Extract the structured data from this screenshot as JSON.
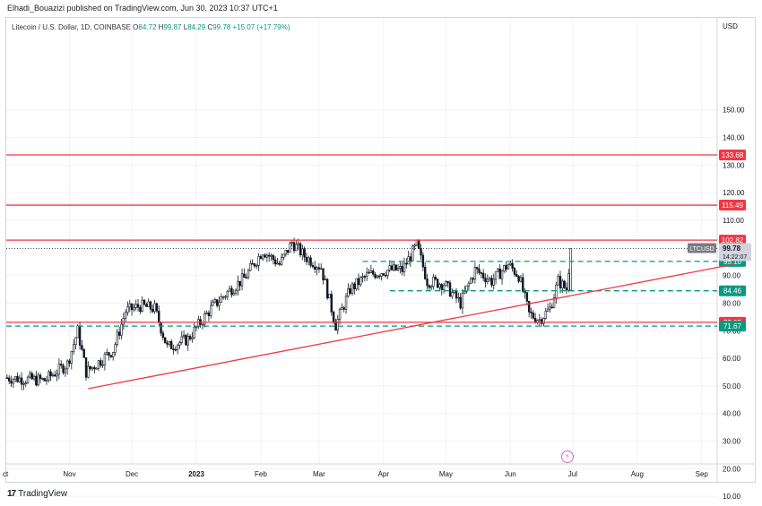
{
  "header": {
    "published_by": "Elhadi_Bouazizi published on TradingView.com, Jun 30, 2023 10:37 UTC+1"
  },
  "legend": {
    "symbol_text": "Litecoin / U.S. Dollar, 1D, COINBASE",
    "o_label": "O",
    "o_value": "84.72",
    "h_label": "H",
    "h_value": "99.87",
    "l_label": "L",
    "l_value": "84.29",
    "c_label": "C",
    "c_value": "99.78",
    "change": "+15.07 (+17.79%)"
  },
  "footer": {
    "logo_text": "TradingView"
  },
  "icons": {
    "logo": "tradingview-logo-icon",
    "replay": "lightning-clock-icon"
  },
  "colors": {
    "up": "#089981",
    "down": "#f23645",
    "candle": "#131722",
    "resistance": "#f23645",
    "dashed": "#089981",
    "trendline": "#f23645",
    "price_label_bg": "#131722"
  },
  "chart_data": {
    "type": "candlestick",
    "symbol": "Litecoin / U.S. Dollar, 1D, COINBASE",
    "axis_unit": "USD",
    "x_ticks": [
      "Nov",
      "Dec",
      "2023",
      "Feb",
      "Mar",
      "Apr",
      "May",
      "Jun",
      "Jul",
      "Aug",
      "Sep"
    ],
    "x_first_partial_label": "ct",
    "y_ticks": [
      10,
      20,
      30,
      40,
      50,
      60,
      70,
      80,
      90,
      100,
      110,
      120,
      130,
      140,
      150
    ],
    "ylim": [
      0,
      160
    ],
    "horizontal_levels": [
      {
        "value": 133.68,
        "label": "133.68",
        "style": "solid",
        "color": "#f23645"
      },
      {
        "value": 115.49,
        "label": "115.49",
        "style": "solid",
        "color": "#f23645"
      },
      {
        "value": 102.82,
        "label": "102.82",
        "style": "solid",
        "color": "#f23645"
      },
      {
        "value": 95.1,
        "label": "95.10",
        "style": "dashed",
        "color": "#089981"
      },
      {
        "value": 84.46,
        "label": "84.46",
        "style": "dashed",
        "color": "#089981"
      },
      {
        "value": 73.05,
        "label": "73.05",
        "style": "solid",
        "color": "#f23645"
      },
      {
        "value": 71.67,
        "label": "71.67",
        "style": "dashed",
        "color": "#089981"
      }
    ],
    "trendline": {
      "start": {
        "date": "2022-11-10",
        "value": 49
      },
      "end": {
        "date": "2023-09-16",
        "value": 94
      }
    },
    "last_price": {
      "symbol": "LTCUSD",
      "value": "99.78",
      "countdown": "14:22:07"
    },
    "approx_closes": [
      {
        "date": "2022-10-01",
        "value": 53
      },
      {
        "date": "2022-10-20",
        "value": 52
      },
      {
        "date": "2022-10-31",
        "value": 58
      },
      {
        "date": "2022-11-05",
        "value": 70
      },
      {
        "date": "2022-11-09",
        "value": 55
      },
      {
        "date": "2022-11-14",
        "value": 58
      },
      {
        "date": "2022-11-22",
        "value": 63
      },
      {
        "date": "2022-11-28",
        "value": 77
      },
      {
        "date": "2022-12-05",
        "value": 79
      },
      {
        "date": "2022-12-12",
        "value": 78
      },
      {
        "date": "2022-12-18",
        "value": 64
      },
      {
        "date": "2022-12-28",
        "value": 67
      },
      {
        "date": "2023-01-08",
        "value": 78
      },
      {
        "date": "2023-01-16",
        "value": 84
      },
      {
        "date": "2023-01-24",
        "value": 89
      },
      {
        "date": "2023-02-02",
        "value": 99
      },
      {
        "date": "2023-02-10",
        "value": 94
      },
      {
        "date": "2023-02-16",
        "value": 102
      },
      {
        "date": "2023-02-22",
        "value": 97
      },
      {
        "date": "2023-03-02",
        "value": 93
      },
      {
        "date": "2023-03-09",
        "value": 72
      },
      {
        "date": "2023-03-16",
        "value": 85
      },
      {
        "date": "2023-03-24",
        "value": 90
      },
      {
        "date": "2023-04-03",
        "value": 92
      },
      {
        "date": "2023-04-10",
        "value": 92
      },
      {
        "date": "2023-04-17",
        "value": 101
      },
      {
        "date": "2023-04-22",
        "value": 88
      },
      {
        "date": "2023-04-30",
        "value": 87
      },
      {
        "date": "2023-05-08",
        "value": 80
      },
      {
        "date": "2023-05-15",
        "value": 92
      },
      {
        "date": "2023-05-23",
        "value": 88
      },
      {
        "date": "2023-05-31",
        "value": 94
      },
      {
        "date": "2023-06-05",
        "value": 90
      },
      {
        "date": "2023-06-10",
        "value": 76
      },
      {
        "date": "2023-06-15",
        "value": 74
      },
      {
        "date": "2023-06-20",
        "value": 78
      },
      {
        "date": "2023-06-24",
        "value": 88
      },
      {
        "date": "2023-06-28",
        "value": 85
      },
      {
        "date": "2023-06-30",
        "value": 99.78
      }
    ]
  }
}
